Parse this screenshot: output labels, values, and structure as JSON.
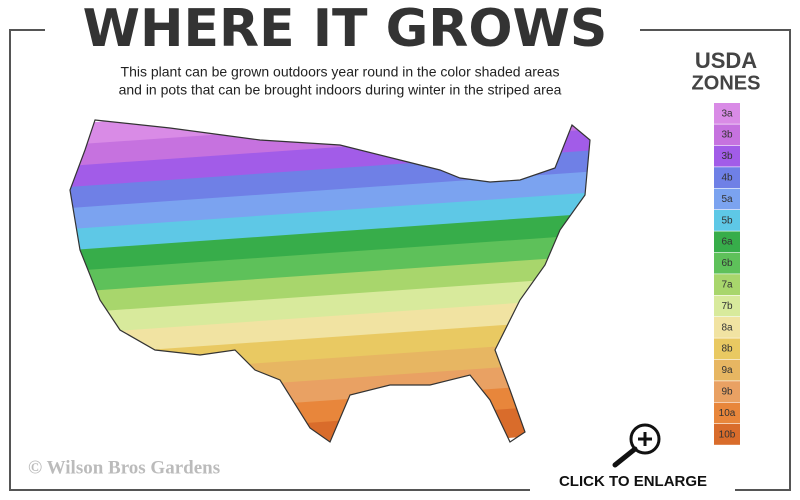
{
  "header": {
    "title": "WHERE IT GROWS",
    "subtitle_lines": [
      "This plant can be grown outdoors year round in the color shaded areas",
      "and in pots that can be brought indoors during winter in the striped area"
    ]
  },
  "legend": {
    "title_lines": [
      "USDA",
      "ZONES"
    ],
    "zones": [
      {
        "label": "3a",
        "color": "#d98be6"
      },
      {
        "label": "3b",
        "color": "#c672df"
      },
      {
        "label": "3b",
        "color": "#a25ce8"
      },
      {
        "label": "4b",
        "color": "#6f80e6"
      },
      {
        "label": "5a",
        "color": "#7ba3f0"
      },
      {
        "label": "5b",
        "color": "#5ec8e6"
      },
      {
        "label": "6a",
        "color": "#37ad4a"
      },
      {
        "label": "6b",
        "color": "#5ec15a"
      },
      {
        "label": "7a",
        "color": "#a8d66c"
      },
      {
        "label": "7b",
        "color": "#d8ea9c"
      },
      {
        "label": "8a",
        "color": "#f1e3a2"
      },
      {
        "label": "8b",
        "color": "#e9c962"
      },
      {
        "label": "9a",
        "color": "#e7b662"
      },
      {
        "label": "9b",
        "color": "#e9a163"
      },
      {
        "label": "10a",
        "color": "#e8863b"
      },
      {
        "label": "10b",
        "color": "#d96c2b"
      }
    ]
  },
  "watermark": "© Wilson Bros Gardens",
  "button": {
    "label": "CLICK TO ENLARGE"
  }
}
